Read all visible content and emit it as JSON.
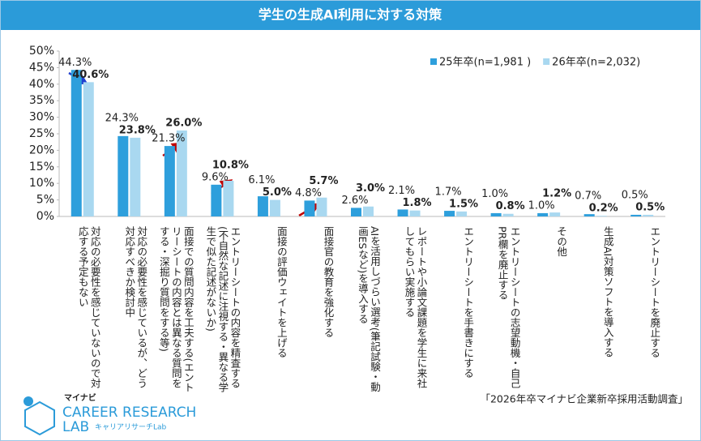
{
  "chart_data": {
    "type": "bar",
    "title": "学生の生成AI利用に対する対策",
    "categories": [
      "対応の必要性を感じていないので対応する予定もない",
      "対応の必要性を感じているが、どう対応すべきか検討中",
      "面接での質問内容を工夫する(エントリーシートの内容とは異なる質問をする・深掘り質問をする等)",
      "エントリーシートの内容を精査する(不自然な記述に注視する・異なる学生で似た記述がないか)",
      "面接の評価ウェイトを上げる",
      "面接官の教育を強化する",
      "AIを活用しづらい選考(筆記試験・動画ESなど)を導入する",
      "レポートや小論文課題を学生に来社してもらい実施する",
      "エントリーシートを手書きにする",
      "エントリーシートの志望動機・自己PR欄を廃止する",
      "その他",
      "生成AI対策ソフトを導入する",
      "エントリーシートを廃止する"
    ],
    "series": [
      {
        "name": "25年卒(n=1,981 )",
        "color": "#2e9fdc",
        "values": [
          44.3,
          24.3,
          21.3,
          9.6,
          6.1,
          4.8,
          2.6,
          2.1,
          1.7,
          1.0,
          1.0,
          0.7,
          0.5
        ],
        "value_labels": [
          "44.3%",
          "24.3%",
          "21.3%",
          "9.6%",
          "6.1%",
          "4.8%",
          "2.6%",
          "2.1%",
          "1.7%",
          "1.0%",
          "1.0%",
          "0.7%",
          "0.5%"
        ]
      },
      {
        "name": "26年卒(n=2,032)",
        "color": "#a9d8f0",
        "values": [
          40.6,
          23.8,
          26.0,
          10.8,
          5.0,
          5.7,
          3.0,
          1.8,
          1.5,
          0.8,
          1.2,
          0.2,
          0.5
        ],
        "value_labels": [
          "40.6%",
          "23.8%",
          "26.0%",
          "10.8%",
          "5.0%",
          "5.7%",
          "3.0%",
          "1.8%",
          "1.5%",
          "0.8%",
          "1.2%",
          "0.2%",
          "0.5%"
        ]
      }
    ],
    "ylim": [
      0,
      50
    ],
    "yticks": [
      {
        "value": 0,
        "label": "0%"
      },
      {
        "value": 5,
        "label": "5%"
      },
      {
        "value": 10,
        "label": "10%"
      },
      {
        "value": 15,
        "label": "15%"
      },
      {
        "value": 20,
        "label": "20%"
      },
      {
        "value": 25,
        "label": "25%"
      },
      {
        "value": 30,
        "label": "30%"
      },
      {
        "value": 35,
        "label": "35%"
      },
      {
        "value": 40,
        "label": "40%"
      },
      {
        "value": 45,
        "label": "45%"
      },
      {
        "value": 50,
        "label": "50%"
      }
    ],
    "legend": "upper right",
    "source": "「2026年卒マイナビ企業新卒採用活動調査」"
  },
  "logo": {
    "brand": "マイナビ",
    "name": "CAREER RESEARCH",
    "lab": "LAB",
    "kana": "キャリアリサーチLab"
  }
}
